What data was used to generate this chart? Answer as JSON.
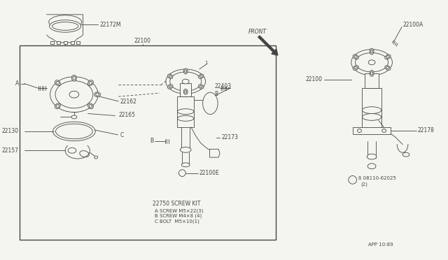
{
  "background_color": "#f5f5f0",
  "fig_width": 6.4,
  "fig_height": 3.72,
  "dpi": 100,
  "lc": "#444444",
  "lw": 0.6,
  "fs": 5.5,
  "sfs": 5.0,
  "labels": {
    "22172M": "22172M",
    "22100_top": "22100",
    "22162": "22162",
    "22165": "22165",
    "22130": "22130",
    "22157": "22157",
    "22403": "22403",
    "22173": "22173",
    "22100E": "22100E",
    "22100A": "22100A",
    "22100_right": "22100",
    "22178": "22178",
    "b_bolt": "ß 08110-62025",
    "b_bolt2": "(2)",
    "screw_kit": "22750 SCREW KIT",
    "screw_A": "A SCREW M5×22(3)",
    "screw_B": "B SCREW M4×8 (4)",
    "screw_C": "C BOLT  M5×10(1)",
    "front": "FRONT",
    "app": "APP 10:89"
  }
}
